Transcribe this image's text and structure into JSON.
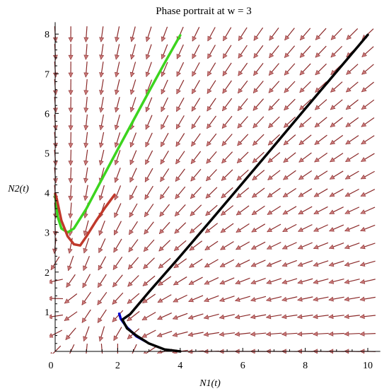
{
  "chart_data": {
    "type": "line",
    "title": "Phase portrait at w = 3",
    "xlabel": "N1(t)",
    "ylabel": "N2(t)",
    "xlim": [
      0,
      10.4
    ],
    "ylim": [
      0,
      8.3
    ],
    "x_ticks": [
      0,
      2,
      4,
      6,
      8,
      10
    ],
    "y_ticks": [
      1,
      2,
      3,
      4,
      5,
      6,
      7,
      8
    ],
    "grid": false,
    "legend": "none",
    "vector_field": {
      "x_range": [
        0,
        10
      ],
      "y_range": [
        0,
        8
      ],
      "arrow_color": "#8b2a2a",
      "arrow_head_color": "#c97a7a",
      "w": 3
    },
    "series": [
      {
        "color": "#3cd41e",
        "points": [
          [
            4.0,
            7.97
          ],
          [
            3.5,
            7.27
          ],
          [
            3.0,
            6.55
          ],
          [
            2.5,
            5.82
          ],
          [
            2.0,
            5.09
          ],
          [
            1.5,
            4.35
          ],
          [
            1.0,
            3.6
          ],
          [
            0.6,
            3.1
          ],
          [
            0.4,
            3.0
          ],
          [
            0.2,
            3.1
          ],
          [
            0.08,
            3.4
          ],
          [
            0.0,
            3.95
          ]
        ]
      },
      {
        "color": "#c0392b",
        "points": [
          [
            1.9,
            3.95
          ],
          [
            1.6,
            3.63
          ],
          [
            1.3,
            3.28
          ],
          [
            1.0,
            2.9
          ],
          [
            0.8,
            2.67
          ],
          [
            0.6,
            2.7
          ],
          [
            0.4,
            2.9
          ],
          [
            0.2,
            3.3
          ],
          [
            0.05,
            3.85
          ],
          [
            0.0,
            3.98
          ]
        ]
      },
      {
        "color": "#0000cc",
        "points": [
          [
            2.05,
            0.95
          ],
          [
            2.1,
            0.82
          ],
          [
            2.3,
            0.6
          ],
          [
            2.6,
            0.38
          ],
          [
            2.9,
            0.25
          ]
        ]
      },
      {
        "color": "#000000",
        "points": [
          [
            10.0,
            7.98
          ],
          [
            9.0,
            7.05
          ],
          [
            8.0,
            6.12
          ],
          [
            7.0,
            5.18
          ],
          [
            6.0,
            4.25
          ],
          [
            5.0,
            3.32
          ],
          [
            4.0,
            2.4
          ],
          [
            3.0,
            1.5
          ],
          [
            2.4,
            0.94
          ],
          [
            2.15,
            0.8
          ],
          [
            2.3,
            0.58
          ],
          [
            2.6,
            0.4
          ],
          [
            3.0,
            0.2
          ],
          [
            3.5,
            0.05
          ],
          [
            4.0,
            0.0
          ]
        ]
      }
    ]
  }
}
